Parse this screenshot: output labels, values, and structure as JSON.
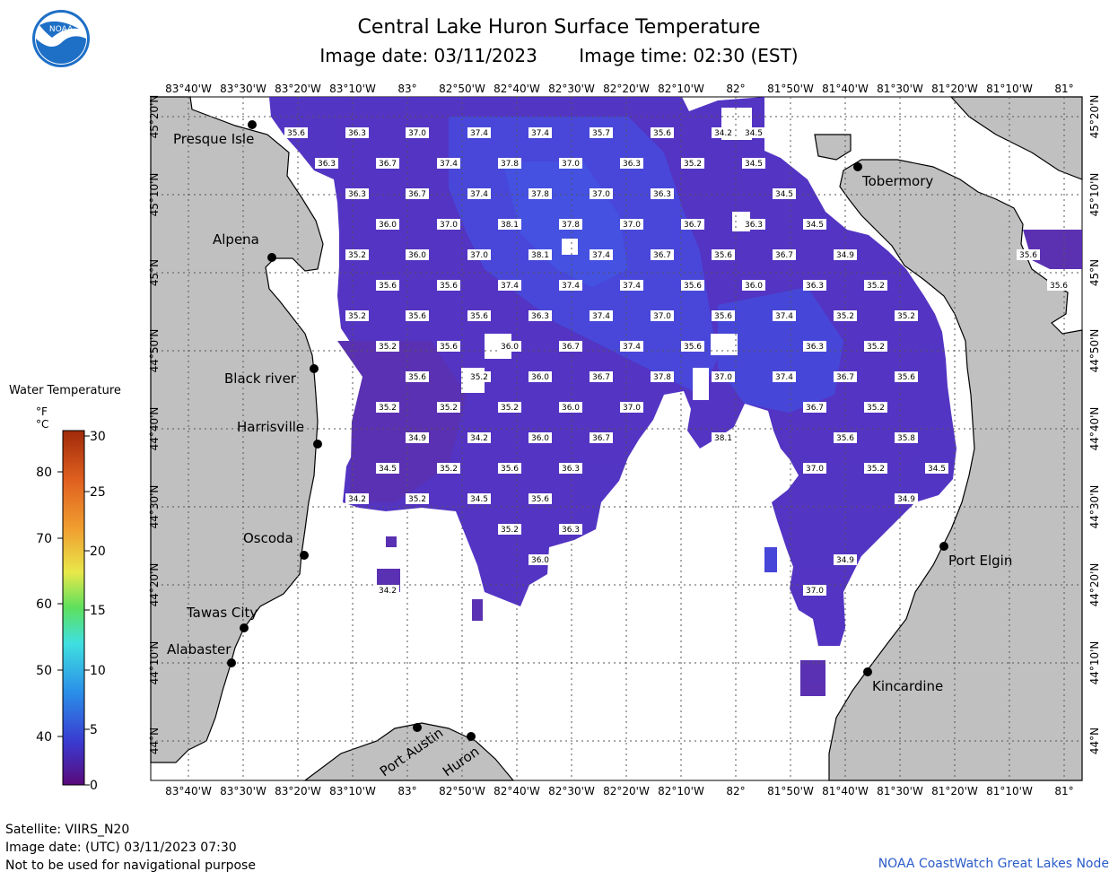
{
  "title": "Central Lake Huron Surface Temperature",
  "image_date_local": "Image date: 03/11/2023",
  "image_time_local": "Image time: 02:30 (EST)",
  "longitude_labels": [
    "83°40'W",
    "83°30'W",
    "83°20'W",
    "83°10'W",
    "83°",
    "82°50'W",
    "82°40'W",
    "82°30'W",
    "82°20'W",
    "82°10'W",
    "82°",
    "81°50'W",
    "81°40'W",
    "81°30'W",
    "81°20'W",
    "81°10'W",
    "81°"
  ],
  "latitude_labels": [
    "45°20'N",
    "45°10'N",
    "45°N",
    "44°50'N",
    "44°40'N",
    "44°30'N",
    "44°20'N",
    "44°10'N",
    "44°N"
  ],
  "places": [
    "Presque Isle",
    "Alpena",
    "Black river",
    "Harrisville",
    "Oscoda",
    "Tawas City",
    "Alabaster",
    "Port Austin",
    "Huron",
    "Tobermory",
    "Port Elgin",
    "Kincardine"
  ],
  "legend": {
    "title": "Water Temperature",
    "unit_f": "°F",
    "unit_c": "°C",
    "f_ticks": [
      "80",
      "70",
      "60",
      "50",
      "40"
    ],
    "c_ticks": [
      "30",
      "25",
      "20",
      "15",
      "10",
      "5",
      "0"
    ],
    "colors": [
      "#5a0a7a",
      "#3a3ad0",
      "#2a8ee8",
      "#3fe0e0",
      "#5de05d",
      "#e8e84a",
      "#f0a030",
      "#e06020",
      "#a02a0a"
    ]
  },
  "temperatures": [
    "35.6",
    "36.3",
    "37.0",
    "37.4",
    "37.4",
    "35.7",
    "35.6",
    "34.2",
    "34.5",
    "36.3",
    "36.7",
    "37.4",
    "37.8",
    "37.0",
    "36.3",
    "35.2",
    "34.5",
    "36.3",
    "36.7",
    "37.4",
    "37.8",
    "37.0",
    "36.3",
    "34.5",
    "36.0",
    "37.0",
    "38.1",
    "37.8",
    "37.0",
    "36.7",
    "36.3",
    "34.5",
    "35.2",
    "36.0",
    "37.0",
    "38.1",
    "37.4",
    "36.7",
    "35.6",
    "36.7",
    "34.9",
    "35.6",
    "35.6",
    "35.6",
    "37.4",
    "37.4",
    "37.4",
    "35.6",
    "36.0",
    "36.3",
    "35.2",
    "35.6",
    "35.2",
    "35.6",
    "35.6",
    "36.3",
    "37.4",
    "37.0",
    "35.6",
    "37.4",
    "35.2",
    "35.2",
    "35.2",
    "35.6",
    "36.0",
    "36.7",
    "37.4",
    "35.6",
    "36.3",
    "35.2",
    "35.6",
    "35.2",
    "36.0",
    "36.7",
    "37.8",
    "37.0",
    "37.4",
    "36.7",
    "35.6",
    "35.2",
    "35.2",
    "35.2",
    "36.0",
    "37.0",
    "36.7",
    "35.2",
    "34.9",
    "34.2",
    "36.0",
    "36.7",
    "38.1",
    "35.6",
    "35.8",
    "34.5",
    "35.2",
    "35.6",
    "36.3",
    "37.0",
    "35.2",
    "34.5",
    "34.2",
    "35.2",
    "34.5",
    "35.6",
    "34.9",
    "35.2",
    "36.3",
    "36.0",
    "34.9",
    "34.2",
    "37.0"
  ],
  "footer": {
    "satellite": "Satellite: VIIRS_N20",
    "utc_date": "Image date: (UTC) 03/11/2023  07:30",
    "disclaimer": "Not to be used for navigational purpose",
    "credit": "NOAA CoastWatch Great Lakes Node"
  },
  "logo_text": "NOAA"
}
